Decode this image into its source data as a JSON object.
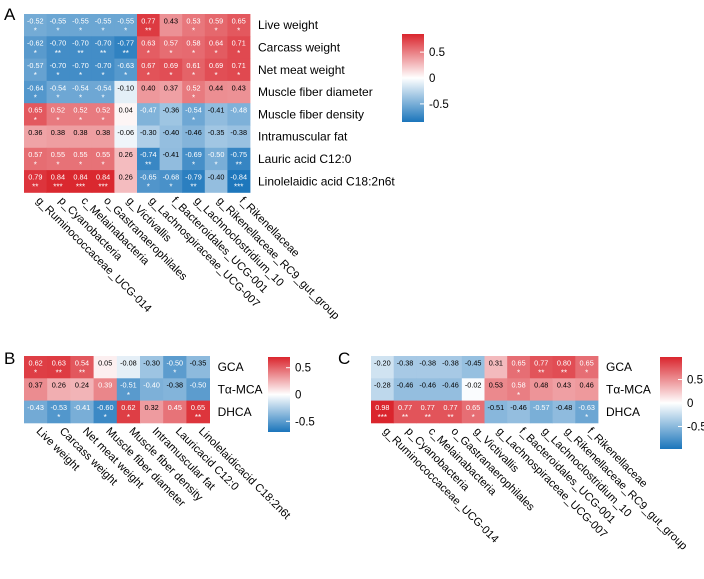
{
  "chart_data": [
    {
      "panel": "A",
      "type": "heatmap",
      "columns": [
        "g_Ruminococcaceae_UCG-014",
        "p_Cyanobacteria",
        "c_Melainabacteria",
        "o_Gastranaerophilales",
        "g_Victivallis",
        "g_Lachnospiraceae_UCG-007",
        "f_Bacteroidales_UCG-001",
        "g_Lachnoclostridium_10",
        "g_Rikenellaceae_RC9_gut_group",
        "f_Rikenellaceae"
      ],
      "rows": [
        "Live weight",
        "Carcass weight",
        "Net meat weight",
        "Muscle fiber diameter",
        "Muscle fiber density",
        "Intramuscular fat",
        "Lauric acid C12:0",
        "Linolelaidic acid C18:2n6t"
      ],
      "values": [
        [
          "-0.52",
          "-0.55",
          "-0.55",
          "-0.55",
          "-0.55",
          "0.77",
          "0.43",
          "0.53",
          "0.59",
          "0.65"
        ],
        [
          "-0.62",
          "-0.70",
          "-0.70",
          "-0.70",
          "-0.77",
          "0.63",
          "0.57",
          "0.58",
          "0.64",
          "0.71"
        ],
        [
          "-0.57",
          "-0.70",
          "-0.70",
          "-0.70",
          "-0.63",
          "0.67",
          "0.69",
          "0.61",
          "0.69",
          "0.71"
        ],
        [
          "-0.64",
          "-0.54",
          "-0.54",
          "-0.54",
          "-0.10",
          "0.40",
          "0.37",
          "0.52",
          "0.44",
          "0.43"
        ],
        [
          "0.65",
          "0.52",
          "0.52",
          "0.52",
          "0.04",
          "-0.47",
          "-0.36",
          "-0.54",
          "-0.41",
          "-0.48"
        ],
        [
          "0.36",
          "0.38",
          "0.38",
          "0.38",
          "-0.06",
          "-0.30",
          "-0.40",
          "-0.46",
          "-0.35",
          "-0.38"
        ],
        [
          "0.57",
          "0.55",
          "0.55",
          "0.55",
          "0.26",
          "-0.74",
          "-0.41",
          "-0.69",
          "-0.50",
          "-0.75"
        ],
        [
          "0.79",
          "0.84",
          "0.84",
          "0.84",
          "0.26",
          "-0.65",
          "-0.68",
          "-0.79",
          "-0.40",
          "-0.84"
        ]
      ],
      "stars": [
        [
          "*",
          "*",
          "*",
          "*",
          "*",
          "**",
          "",
          "*",
          "*",
          "*"
        ],
        [
          "*",
          "**",
          "**",
          "**",
          "**",
          "*",
          "*",
          "*",
          "*",
          "*"
        ],
        [
          "*",
          "*",
          "*",
          "*",
          "*",
          "*",
          "*",
          "*",
          "*",
          "*"
        ],
        [
          "*",
          "*",
          "*",
          "*",
          "",
          "",
          "",
          "*",
          "",
          ""
        ],
        [
          "*",
          "*",
          "*",
          "*",
          "",
          "",
          "",
          "*",
          "",
          ""
        ],
        [
          "",
          "",
          "",
          "",
          "",
          "",
          "",
          "",
          "",
          ""
        ],
        [
          "*",
          "*",
          "*",
          "*",
          "",
          "**",
          "",
          "*",
          "*",
          "**"
        ],
        [
          "**",
          "***",
          "***",
          "***",
          "",
          "*",
          "*",
          "**",
          "",
          "***"
        ]
      ],
      "legend_ticks": [
        "0.5",
        "0",
        "-0.5"
      ],
      "legend_range": [
        -0.85,
        0.85
      ]
    },
    {
      "panel": "B",
      "type": "heatmap",
      "columns": [
        "Live weight",
        "Carcass weight",
        "Net meat weight",
        "Muscle fiber diameter",
        "Muscle fiber density",
        "Intramuscular fat",
        "Lauricacid C12:0",
        "Linolelaidicacid C18:2n6t"
      ],
      "rows": [
        "GCA",
        "Tα-MCA",
        "DHCA"
      ],
      "values": [
        [
          "0.62",
          "0.63",
          "0.54",
          "0.05",
          "-0.08",
          "-0.30",
          "-0.50",
          "-0.35"
        ],
        [
          "0.37",
          "0.26",
          "0.24",
          "0.39",
          "-0.51",
          "-0.40",
          "-0.38",
          "-0.50"
        ],
        [
          "-0.43",
          "-0.53",
          "-0.41",
          "-0.60",
          "0.62",
          "0.32",
          "0.45",
          "0.65"
        ]
      ],
      "stars": [
        [
          "*",
          "**",
          "**",
          "",
          "",
          "",
          "*",
          ""
        ],
        [
          "",
          "",
          "",
          "",
          "*",
          "",
          "",
          ""
        ],
        [
          "",
          "*",
          "",
          "*",
          "*",
          "",
          "",
          "**"
        ]
      ],
      "legend_ticks": [
        "0.5",
        "0",
        "-0.5"
      ],
      "legend_range": [
        -0.7,
        0.7
      ]
    },
    {
      "panel": "C",
      "type": "heatmap",
      "columns": [
        "g_Ruminococcaceae_UCG-014",
        "p_Cyanobacteria",
        "c_Melainabacteria",
        "o_Gastranaerophilales",
        "g_Victivallis",
        "g_Lachnospiraceae_UCG-007",
        "f_Bacteroidales_UCG-001",
        "g_Lachnoclostridium_10",
        "g_Rikenellaceae_RC9_gut_group",
        "f_Rikenellaceae"
      ],
      "rows": [
        "GCA",
        "Tα-MCA",
        "DHCA"
      ],
      "values": [
        [
          "-0.20",
          "-0.38",
          "-0.38",
          "-0.38",
          "-0.45",
          "0.31",
          "0.65",
          "0.77",
          "0.80",
          "0.65"
        ],
        [
          "-0.28",
          "-0.46",
          "-0.46",
          "-0.46",
          "-0.02",
          "0.53",
          "0.58",
          "0.48",
          "0.43",
          "0.46"
        ],
        [
          "0.98",
          "0.77",
          "0.77",
          "0.77",
          "0.65",
          "-0.51",
          "-0.46",
          "-0.57",
          "-0.48",
          "-0.63"
        ]
      ],
      "stars": [
        [
          "",
          "",
          "",
          "",
          "",
          "",
          "*",
          "**",
          "**",
          "*"
        ],
        [
          "",
          "",
          "",
          "",
          "",
          "",
          "*",
          "",
          "",
          ""
        ],
        [
          "***",
          "**",
          "**",
          "**",
          "*",
          "",
          "",
          "",
          "",
          "*"
        ]
      ],
      "legend_ticks": [
        "0.5",
        "0",
        "-0.5"
      ],
      "legend_range": [
        -0.98,
        0.98
      ]
    }
  ]
}
